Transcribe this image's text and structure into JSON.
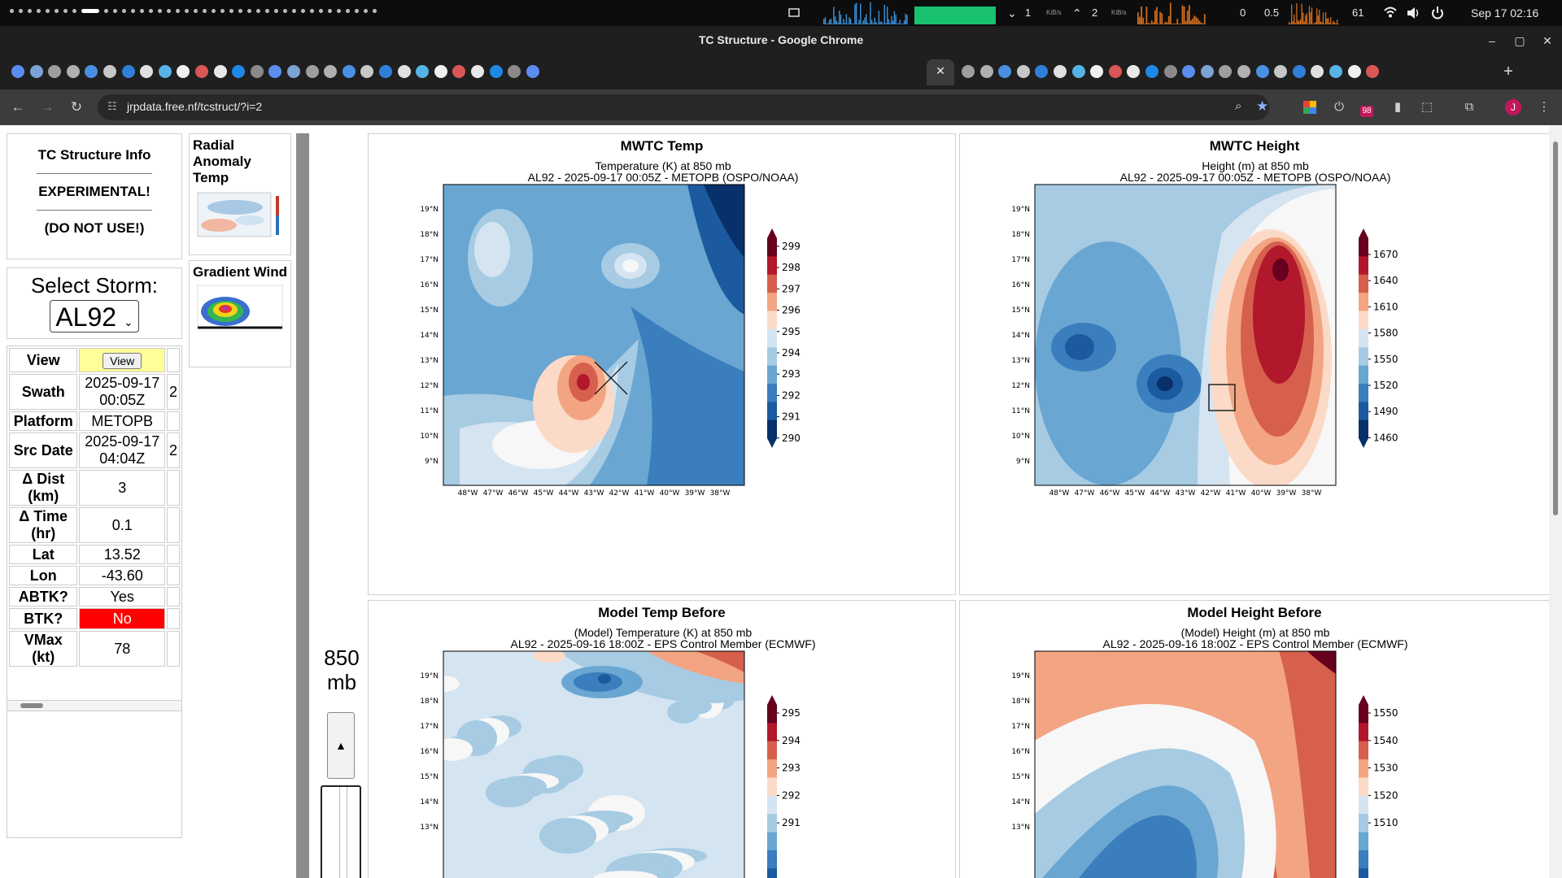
{
  "os": {
    "net": {
      "down_value": "1",
      "down_unit": "KiB/s",
      "up_value": "2",
      "up_unit": "KiB/s"
    },
    "load": {
      "a": "0",
      "b": "0.5"
    },
    "temp": "61",
    "clock": "Sep 17  02:16",
    "icons": {
      "screen": "screen-icon",
      "wifi": "wifi-icon",
      "volume": "volume-icon",
      "power": "power-icon"
    }
  },
  "window": {
    "title": "TC Structure - Google Chrome",
    "minimize": "–",
    "maximize": "▢",
    "close": "✕"
  },
  "tabs": {
    "count": 53,
    "active_index": 29,
    "close_glyph": "✕",
    "new_tab_glyph": "+",
    "favicon_colors": [
      "#5b8def",
      "#7aa3d6",
      "#9e9e9e",
      "#b0b0b0",
      "#4a90e2",
      "#c7c7c7",
      "#2f7fd8",
      "#e0e0e0",
      "#56b3e6",
      "#f0f0f0",
      "#d95757",
      "#e8e8e8",
      "#1e88e5",
      "#8a8a8a"
    ]
  },
  "toolbar": {
    "url": "jrpdata.free.nf/tcstruct/?i=2",
    "back": "←",
    "forward": "→",
    "reload": "↻",
    "ext_badge": "98",
    "profile_initial": "J",
    "icons": [
      "zoom-icon",
      "bookmark-star-icon",
      "google-ext-icon",
      "power-ext-icon",
      "badge-ext-icon",
      "doc-ext-icon",
      "puzzle-icon",
      "tab-search-icon",
      "profile-icon",
      "menu-icon"
    ]
  },
  "sidebar": {
    "info": {
      "title": "TC Structure Info",
      "warn1": "EXPERIMENTAL!",
      "warn2": "(DO NOT USE!)"
    },
    "select": {
      "label": "Select Storm:",
      "value": "AL92"
    },
    "table": [
      {
        "k": "View",
        "v": "View",
        "button": true
      },
      {
        "k": "Swath",
        "v": "2025-09-17 00:05Z",
        "x": "2"
      },
      {
        "k": "Platform",
        "v": "METOPB"
      },
      {
        "k": "Src Date",
        "v": "2025-09-17 04:04Z",
        "x": "2"
      },
      {
        "k": "Δ Dist (km)",
        "v": "3"
      },
      {
        "k": "Δ Time (hr)",
        "v": "0.1"
      },
      {
        "k": "Lat",
        "v": "13.52"
      },
      {
        "k": "Lon",
        "v": "-43.60"
      },
      {
        "k": "ABTK?",
        "v": "Yes"
      },
      {
        "k": "BTK?",
        "v": "No",
        "alert": true
      },
      {
        "k": "VMax (kt)",
        "v": "78"
      }
    ],
    "thumbs": [
      {
        "title": "Radial Anomaly Temp"
      },
      {
        "title": "Gradient Wind"
      }
    ],
    "level": {
      "value": "850",
      "unit": "mb",
      "up": "▲"
    }
  },
  "panels": [
    {
      "title": "MWTC Temp",
      "line1": "Temperature (K) at 850 mb",
      "line2": "AL92 - 2025-09-17 00:05Z - METOPB (OSPO/NOAA)",
      "kind": "temp_obs",
      "marker": "x"
    },
    {
      "title": "MWTC Height",
      "line1": "Height (m) at 850 mb",
      "line2": "AL92 - 2025-09-17 00:05Z - METOPB (OSPO/NOAA)",
      "kind": "height_obs",
      "marker": "square"
    },
    {
      "title": "Model Temp Before",
      "line1": "(Model) Temperature (K) at 850 mb",
      "line2": "AL92 - 2025-09-16 18:00Z - EPS Control Member (ECMWF)",
      "kind": "temp_model"
    },
    {
      "title": "Model Height Before",
      "line1": "(Model) Height (m) at 850 mb",
      "line2": "AL92 - 2025-09-16 18:00Z - EPS Control Member (ECMWF)",
      "kind": "height_model"
    }
  ],
  "chart_data": [
    {
      "type": "heatmap",
      "title": "MWTC Temp",
      "subtitle": "Temperature (K) at 850 mb",
      "x_ticks": [
        "48°W",
        "47°W",
        "46°W",
        "45°W",
        "44°W",
        "43°W",
        "42°W",
        "41°W",
        "40°W",
        "39°W",
        "38°W"
      ],
      "y_ticks": [
        "19°N",
        "18°N",
        "17°N",
        "16°N",
        "15°N",
        "14°N",
        "13°N",
        "12°N",
        "11°N",
        "10°N",
        "9°N"
      ],
      "colorbar": [
        299,
        298,
        297,
        296,
        295,
        294,
        293,
        292,
        291,
        290
      ],
      "center": {
        "lat": 13.52,
        "lon": -43.6
      }
    },
    {
      "type": "heatmap",
      "title": "MWTC Height",
      "subtitle": "Height (m) at 850 mb",
      "x_ticks": [
        "48°W",
        "47°W",
        "46°W",
        "45°W",
        "44°W",
        "43°W",
        "42°W",
        "41°W",
        "40°W",
        "39°W",
        "38°W"
      ],
      "y_ticks": [
        "19°N",
        "18°N",
        "17°N",
        "16°N",
        "15°N",
        "14°N",
        "13°N",
        "12°N",
        "11°N",
        "10°N",
        "9°N"
      ],
      "colorbar": [
        1670,
        1640,
        1610,
        1580,
        1550,
        1520,
        1490,
        1460
      ]
    },
    {
      "type": "heatmap",
      "title": "Model Temp Before",
      "subtitle": "(Model) Temperature (K) at 850 mb",
      "y_ticks": [
        "19°N",
        "18°N",
        "17°N",
        "16°N",
        "15°N",
        "14°N",
        "13°N"
      ],
      "colorbar": [
        295,
        294,
        293,
        292,
        291
      ]
    },
    {
      "type": "heatmap",
      "title": "Model Height Before",
      "subtitle": "(Model) Height (m) at 850 mb",
      "y_ticks": [
        "19°N",
        "18°N",
        "17°N",
        "16°N",
        "15°N",
        "14°N",
        "13°N"
      ],
      "colorbar": [
        1550,
        1540,
        1530,
        1520,
        1510
      ]
    }
  ]
}
